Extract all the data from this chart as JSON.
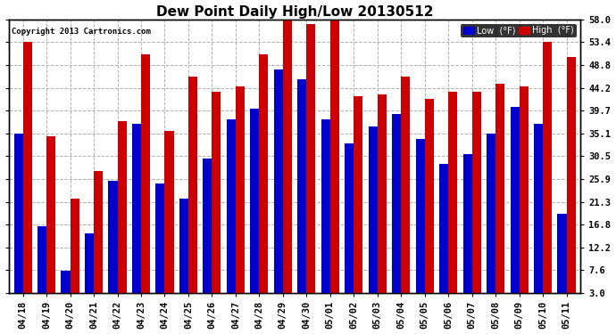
{
  "title": "Dew Point Daily High/Low 20130512",
  "copyright": "Copyright 2013 Cartronics.com",
  "legend_low": "Low  (°F)",
  "legend_high": "High  (°F)",
  "dates": [
    "04/18",
    "04/19",
    "04/20",
    "04/21",
    "04/22",
    "04/23",
    "04/24",
    "04/25",
    "04/26",
    "04/27",
    "04/28",
    "04/29",
    "04/30",
    "05/01",
    "05/02",
    "05/03",
    "05/04",
    "05/05",
    "05/06",
    "05/07",
    "05/08",
    "05/09",
    "05/10",
    "05/11"
  ],
  "lows": [
    35.0,
    16.5,
    7.5,
    15.0,
    25.5,
    37.0,
    25.0,
    22.0,
    30.0,
    38.0,
    40.0,
    48.0,
    46.0,
    38.0,
    33.0,
    36.5,
    39.0,
    34.0,
    29.0,
    31.0,
    35.0,
    40.5,
    37.0,
    19.0
  ],
  "highs": [
    53.5,
    34.5,
    22.0,
    27.5,
    37.5,
    51.0,
    35.5,
    46.5,
    43.5,
    44.5,
    51.0,
    58.0,
    57.0,
    58.0,
    42.5,
    43.0,
    46.5,
    42.0,
    43.5,
    43.5,
    45.0,
    44.5,
    53.5,
    50.5
  ],
  "yticks": [
    3.0,
    7.6,
    12.2,
    16.8,
    21.3,
    25.9,
    30.5,
    35.1,
    39.7,
    44.2,
    48.8,
    53.4,
    58.0
  ],
  "ymin": 3.0,
  "ymax": 58.0,
  "low_color": "#0000cc",
  "high_color": "#cc0000",
  "bg_color": "#ffffff",
  "grid_color": "#b0b0b0",
  "title_fontsize": 11,
  "tick_fontsize": 7.5,
  "bar_width": 0.38
}
